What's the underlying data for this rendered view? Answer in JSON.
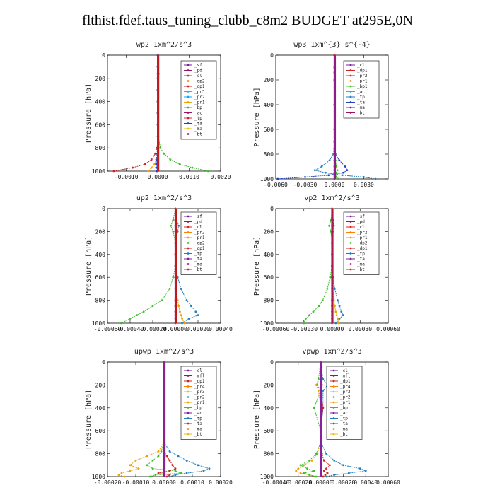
{
  "page": {
    "title": "flthist.fdef.taus_tuning_clubb_c8m2  BUDGET at295E,0N"
  },
  "chart_data": [
    {
      "type": "line",
      "title": "wp2  1xm^2/s^3",
      "ylabel": "Pressure [hPa]",
      "xlim": [
        -0.0016,
        0.002
      ],
      "ylim": [
        0,
        1000
      ],
      "xticks": [
        -0.001,
        0.0,
        0.001,
        0.002
      ],
      "xtick_labels": [
        "-0.0010",
        "0.0000",
        "0.0010",
        "0.0020"
      ],
      "yticks": [
        0,
        200,
        400,
        600,
        800,
        1000
      ],
      "ytick_labels": [
        "0",
        "200",
        "400",
        "600",
        "800",
        "1000"
      ],
      "pressure": [
        0,
        100,
        160,
        200,
        300,
        400,
        500,
        600,
        700,
        800,
        850,
        900,
        940,
        970,
        1000
      ],
      "legend": [
        "_sf",
        "_pd",
        "_cl",
        "_dp2",
        "_dp1",
        "_pr3",
        "_pr2",
        "_pr1",
        "_bp",
        "_ac",
        "_tp",
        "_ta",
        "_ma",
        "_bt"
      ],
      "series": [
        {
          "name": "_dp1",
          "color": "#d42020",
          "values": [
            0,
            0,
            0,
            0,
            0,
            0,
            0,
            0,
            0,
            -2e-05,
            -8e-05,
            -0.0002,
            -0.0004,
            -0.0008,
            -0.0014
          ]
        },
        {
          "name": "_pr1",
          "color": "#f0a000",
          "values": [
            0,
            0,
            0,
            0,
            0,
            0,
            0,
            0,
            0,
            -1e-05,
            -2e-05,
            -5e-05,
            -0.0001,
            -0.0002,
            -0.0003
          ]
        },
        {
          "name": "_bp",
          "color": "#3cbf2c",
          "values": [
            0,
            0,
            3e-05,
            0,
            0,
            0,
            0,
            0,
            2e-05,
            8e-05,
            0.0002,
            0.0004,
            0.0007,
            0.0011,
            0.0016
          ]
        },
        {
          "name": "_ta",
          "color": "#2040c0",
          "values": [
            0,
            0,
            0,
            0,
            0,
            0,
            0,
            0,
            0,
            -1e-05,
            -2e-05,
            -4e-05,
            -5e-05,
            -5e-05,
            -3e-05
          ]
        },
        {
          "name": "_bt",
          "color": "#8a20a0",
          "values": [
            0,
            0,
            0,
            0,
            0,
            0,
            0,
            0,
            0,
            0,
            0,
            0,
            0,
            0,
            0
          ]
        }
      ]
    },
    {
      "type": "line",
      "title": "wp3  1xm^{3} s^{-4}",
      "ylabel": "Pressure [hPa]",
      "xlim": [
        -0.006,
        0.0055
      ],
      "ylim": [
        0,
        1000
      ],
      "xticks": [
        -0.006,
        -0.003,
        0.0,
        0.003
      ],
      "xtick_labels": [
        "-0.0060",
        "-0.0030",
        "0.0000",
        "0.0030"
      ],
      "yticks": [
        0,
        200,
        400,
        600,
        800,
        1000
      ],
      "ytick_labels": [
        "0",
        "200",
        "400",
        "600",
        "800",
        "1000"
      ],
      "pressure": [
        0,
        100,
        140,
        200,
        400,
        600,
        700,
        800,
        850,
        900,
        930,
        950,
        970,
        985,
        1000
      ],
      "legend": [
        "_cl",
        "_dp1",
        "_pr2",
        "_pr1",
        "_bp1",
        "_ac",
        "_tp",
        "_ta",
        "_ma",
        "_bt"
      ],
      "series": [
        {
          "name": "_tp",
          "color": "#1f7fbf",
          "values": [
            0,
            0,
            0,
            0,
            0,
            0,
            0,
            -0.0001,
            -0.0005,
            -0.0013,
            -0.002,
            -0.0009,
            0.0008,
            0.003,
            0.0042
          ]
        },
        {
          "name": "_ta",
          "color": "#2040c0",
          "values": [
            0,
            0,
            0,
            0,
            0,
            0,
            0,
            0.0001,
            0.0005,
            0.0011,
            0.0013,
            0.0009,
            -0.0006,
            -0.003,
            -0.0058
          ]
        },
        {
          "name": "_bp1",
          "color": "#3cbf2c",
          "values": [
            0,
            0,
            0,
            0,
            0,
            0,
            0,
            0,
            0.0001,
            0.0002,
            0.0003,
            0.0002,
            0.0001,
            0.0002,
            0.0004
          ]
        },
        {
          "name": "_dp1",
          "color": "#d42020",
          "values": [
            0,
            0,
            0,
            0,
            0,
            0,
            0,
            0,
            0,
            0,
            0,
            0,
            0,
            0,
            0
          ]
        }
      ]
    },
    {
      "type": "line",
      "title": "up2  1xm^2/s^3",
      "ylabel": "Pressure [hPa]",
      "xlim": [
        -0.0006,
        0.0004
      ],
      "ylim": [
        0,
        1000
      ],
      "xticks": [
        -0.0006,
        -0.0004,
        -0.0002,
        0.0,
        0.0002,
        0.0004
      ],
      "xtick_labels": [
        "-0.00060",
        "-0.00040",
        "-0.00020",
        "0.00000",
        "0.00020",
        "0.00040"
      ],
      "yticks": [
        0,
        200,
        400,
        600,
        800,
        1000
      ],
      "ytick_labels": [
        "0",
        "200",
        "400",
        "600",
        "800",
        "1000"
      ],
      "pressure": [
        0,
        100,
        150,
        200,
        300,
        400,
        500,
        600,
        700,
        800,
        850,
        900,
        930,
        960,
        1000
      ],
      "legend": [
        "_sf",
        "_pd",
        "_cl",
        "_pr2",
        "_pr1",
        "_dp2",
        "_dp1",
        "_tp",
        "_ta",
        "_ma",
        "_bt"
      ],
      "series": [
        {
          "name": "_tp",
          "color": "#1f7fbf",
          "values": [
            0,
            1e-05,
            3e-05,
            2e-05,
            0,
            0,
            0,
            2e-05,
            5e-05,
            0.0001,
            0.00014,
            0.00018,
            0.0002,
            0.00012,
            6e-05
          ]
        },
        {
          "name": "_dp2",
          "color": "#3cbf2c",
          "values": [
            0,
            -2e-05,
            -4e-05,
            -2e-05,
            0,
            0,
            0,
            -2e-05,
            -5e-05,
            -0.00012,
            -0.0002,
            -0.00028,
            -0.00034,
            -0.0004,
            -0.00048
          ]
        },
        {
          "name": "_pr1",
          "color": "#f0a000",
          "values": [
            0,
            0,
            0,
            0,
            0,
            0,
            0,
            0,
            1e-05,
            2e-05,
            3e-05,
            4e-05,
            5e-05,
            6e-05,
            8e-05
          ]
        },
        {
          "name": "_dp1",
          "color": "#d42020",
          "values": [
            0,
            0,
            0,
            0,
            0,
            0,
            0,
            0,
            0,
            0,
            0,
            0,
            0,
            0,
            0
          ]
        }
      ]
    },
    {
      "type": "line",
      "title": "vp2  1xm^2/s^3",
      "ylabel": "Pressure [hPa]",
      "xlim": [
        -0.0006,
        0.0006
      ],
      "ylim": [
        0,
        1000
      ],
      "xticks": [
        -0.0006,
        -0.0003,
        0.0,
        0.0003,
        0.0006
      ],
      "xtick_labels": [
        "-0.00060",
        "-0.00030",
        "0.00000",
        "0.00030",
        "0.00060"
      ],
      "yticks": [
        0,
        200,
        400,
        600,
        800,
        1000
      ],
      "ytick_labels": [
        "0",
        "200",
        "400",
        "600",
        "800",
        "1000"
      ],
      "pressure": [
        0,
        100,
        150,
        200,
        300,
        400,
        500,
        600,
        700,
        800,
        850,
        900,
        930,
        960,
        1000
      ],
      "legend": [
        "_sf",
        "_pd",
        "_cl",
        "_pr2",
        "_pr1",
        "_dp2",
        "_dp1",
        "_tp",
        "_ta",
        "_ma",
        "_bt"
      ],
      "series": [
        {
          "name": "_tp",
          "color": "#1f7fbf",
          "values": [
            0,
            1e-05,
            2e-05,
            1e-05,
            0,
            0,
            0,
            1e-05,
            3e-05,
            6e-05,
            8e-05,
            0.0001,
            0.00012,
            8e-05,
            4e-05
          ]
        },
        {
          "name": "_dp2",
          "color": "#3cbf2c",
          "values": [
            0,
            -1e-05,
            -3e-05,
            -1e-05,
            0,
            0,
            0,
            -2e-05,
            -5e-05,
            -0.0001,
            -0.00014,
            -0.0002,
            -0.00024,
            -0.00028,
            -0.0003
          ]
        },
        {
          "name": "_pr1",
          "color": "#f0a000",
          "values": [
            0,
            0,
            0,
            0,
            0,
            0,
            0,
            0,
            1e-05,
            2e-05,
            3e-05,
            4e-05,
            5e-05,
            6e-05,
            7e-05
          ]
        },
        {
          "name": "_dp1",
          "color": "#d42020",
          "values": [
            0,
            0,
            0,
            0,
            0,
            0,
            0,
            0,
            0,
            0,
            0,
            0,
            0,
            0,
            0
          ]
        }
      ]
    },
    {
      "type": "line",
      "title": "upwp  1xm^2/s^3",
      "ylabel": "Pressure [hPa]",
      "xlim": [
        -0.0002,
        0.0002
      ],
      "ylim": [
        0,
        1000
      ],
      "xticks": [
        -0.0002,
        -0.0001,
        0.0,
        0.0001,
        0.0002
      ],
      "xtick_labels": [
        "-0.00020",
        "-0.00010",
        "0.00000",
        "0.00010",
        "0.00020"
      ],
      "yticks": [
        0,
        200,
        400,
        600,
        800,
        1000
      ],
      "ytick_labels": [
        "0",
        "200",
        "400",
        "600",
        "800",
        "1000"
      ],
      "pressure": [
        0,
        150,
        200,
        400,
        600,
        700,
        780,
        820,
        860,
        900,
        930,
        950,
        970,
        985,
        1000
      ],
      "legend": [
        "_cl",
        "_mfl",
        "_dp1",
        "_pr4",
        "_pr3",
        "_pr2",
        "_pr1",
        "_bp",
        "_ac",
        "_tp",
        "_ta",
        "_ma",
        "_bt"
      ],
      "series": [
        {
          "name": "_pr1",
          "color": "#f0a000",
          "values": [
            0,
            0,
            0,
            0,
            0,
            0,
            -2e-05,
            -6e-05,
            -0.0001,
            -0.00012,
            -9e-05,
            -0.00012,
            -0.00015,
            -0.00016,
            -0.00014
          ]
        },
        {
          "name": "_tp",
          "color": "#1f7fbf",
          "values": [
            0,
            0,
            0,
            0,
            0,
            0,
            2e-05,
            5e-05,
            8e-05,
            0.00012,
            0.00016,
            0.00014,
            8e-05,
            4e-05,
            2e-05
          ]
        },
        {
          "name": "_bp",
          "color": "#3cbf2c",
          "values": [
            0,
            0,
            0,
            0,
            0,
            0,
            -1e-05,
            -2e-05,
            -4e-05,
            -6e-05,
            -4e-05,
            4e-05,
            6e-05,
            -3e-05,
            -5e-05
          ]
        },
        {
          "name": "_dp1",
          "color": "#d42020",
          "values": [
            0,
            0,
            0,
            0,
            0,
            0,
            0,
            1e-05,
            2e-05,
            3e-05,
            4e-05,
            2e-05,
            -2e-05,
            2e-05,
            1e-05
          ]
        }
      ]
    },
    {
      "type": "line",
      "title": "vpwp  1xm^2/s^3",
      "ylabel": "Pressure [hPa]",
      "xlim": [
        -0.0004,
        0.0006
      ],
      "ylim": [
        0,
        1000
      ],
      "xticks": [
        -0.0004,
        -0.0002,
        0.0,
        0.0002,
        0.0004,
        0.0006
      ],
      "xtick_labels": [
        "-0.00040",
        "-0.00020",
        "0.00000",
        "0.00020",
        "0.00040",
        "0.00060"
      ],
      "yticks": [
        0,
        200,
        400,
        600,
        800,
        1000
      ],
      "ytick_labels": [
        "0",
        "200",
        "400",
        "600",
        "800",
        "1000"
      ],
      "pressure": [
        0,
        150,
        200,
        250,
        400,
        600,
        700,
        800,
        860,
        900,
        930,
        950,
        970,
        985,
        1000
      ],
      "legend": [
        "_cl",
        "_mfl",
        "_dp1",
        "_pr4",
        "_pr3",
        "_pr2",
        "_pr1",
        "_bp",
        "_ac",
        "_tp",
        "_ta",
        "_ma",
        "_bt"
      ],
      "series": [
        {
          "name": "_tp",
          "color": "#1f7fbf",
          "values": [
            0,
            2e-05,
            6e-05,
            2e-05,
            2e-05,
            0,
            0,
            5e-05,
            0.00012,
            0.0002,
            0.00035,
            0.0004,
            0.00025,
            0.00012,
            5e-05
          ]
        },
        {
          "name": "_pr1",
          "color": "#f0a000",
          "values": [
            0,
            -2e-05,
            -4e-05,
            -2e-05,
            0,
            0,
            0,
            -3e-05,
            -8e-05,
            -0.00015,
            -0.0002,
            -0.00022,
            -0.00018,
            -0.0001,
            -5e-05
          ]
        },
        {
          "name": "_bp",
          "color": "#3cbf2c",
          "values": [
            0,
            -2e-05,
            -3e-05,
            0,
            -6e-05,
            0,
            0,
            -4e-05,
            -0.0001,
            -0.00018,
            -0.00012,
            -6e-05,
            -0.00015,
            -0.0001,
            -4e-05
          ]
        },
        {
          "name": "_dp1",
          "color": "#d42020",
          "values": [
            0,
            0,
            1e-05,
            0,
            2e-05,
            0,
            0,
            1e-05,
            3e-05,
            8e-05,
            5e-05,
            3e-05,
            6e-05,
            4e-05,
            2e-05
          ]
        }
      ]
    }
  ]
}
